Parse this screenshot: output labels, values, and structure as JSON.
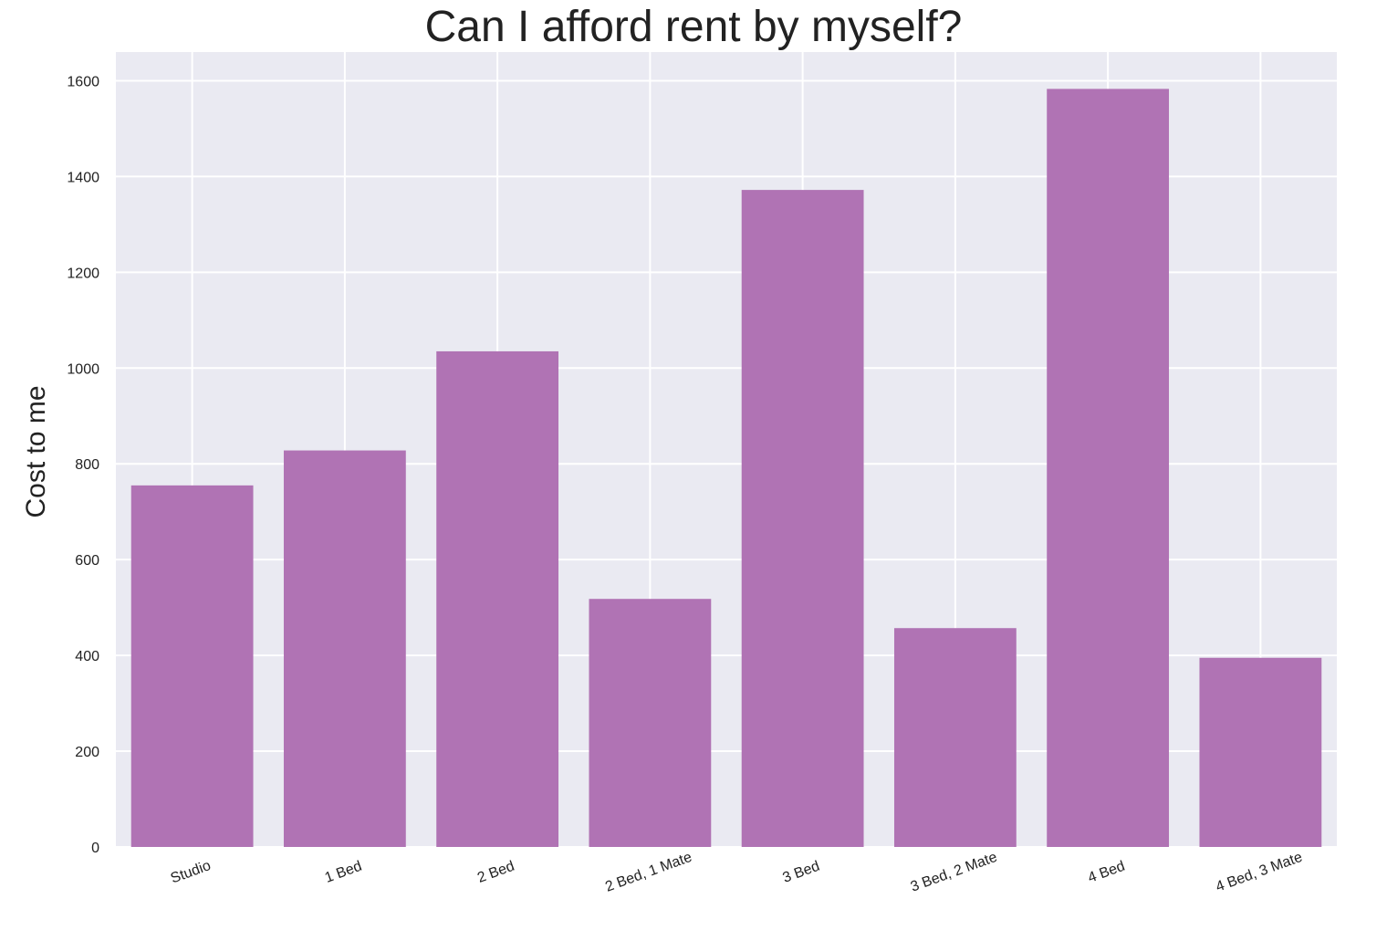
{
  "chart_data": {
    "type": "bar",
    "title": "Can I afford rent by myself?",
    "xlabel": "",
    "ylabel": "Cost to me",
    "categories": [
      "Studio",
      "1 Bed",
      "2 Bed",
      "2 Bed, 1 Mate",
      "3 Bed",
      "3 Bed, 2 Mate",
      "4 Bed",
      "4 Bed, 3 Mate"
    ],
    "values": [
      755,
      828,
      1035,
      518,
      1372,
      457,
      1583,
      395
    ],
    "ylim": [
      0,
      1660
    ],
    "yticks": [
      0,
      200,
      400,
      600,
      800,
      1000,
      1200,
      1400,
      1600
    ],
    "grid": true,
    "bar_color": "#b073b4",
    "background_color": "#eaeaf2",
    "grid_color": "#ffffff"
  }
}
